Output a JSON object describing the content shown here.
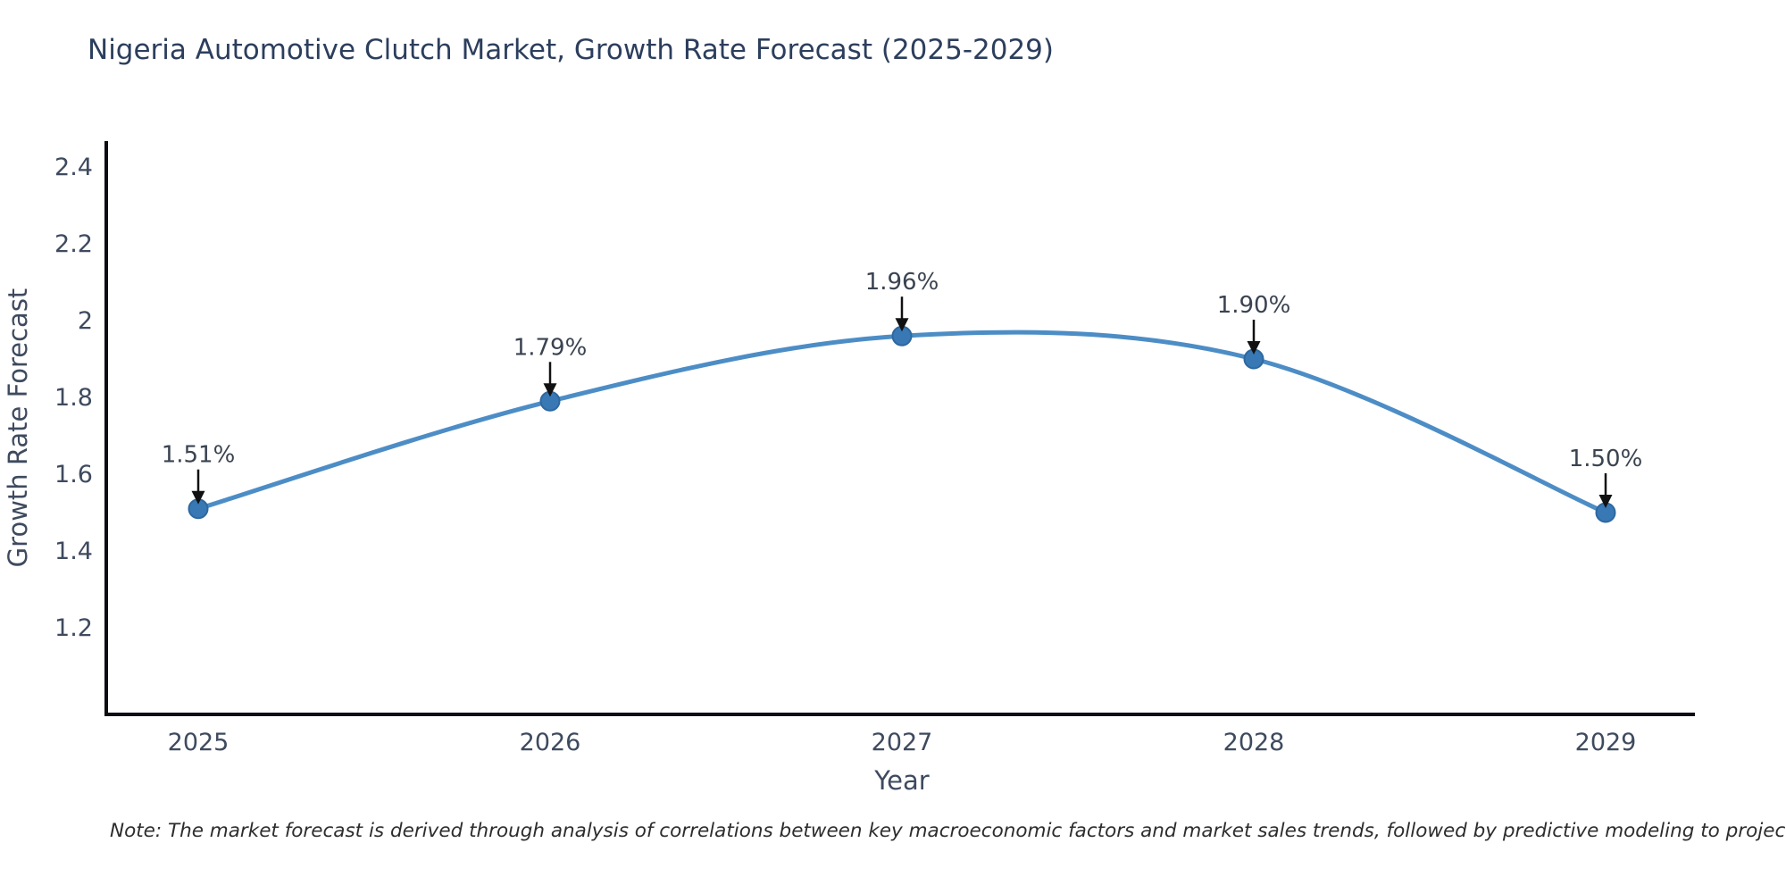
{
  "chart_data": {
    "type": "line",
    "title": "Nigeria Automotive Clutch Market, Growth Rate Forecast (2025-2029)",
    "xlabel": "Year",
    "ylabel": "Growth Rate Forecast",
    "categories": [
      "2025",
      "2026",
      "2027",
      "2028",
      "2029"
    ],
    "series": [
      {
        "name": "Growth Rate Forecast",
        "values": [
          1.51,
          1.79,
          1.96,
          1.9,
          1.5
        ],
        "point_labels": [
          "1.51%",
          "1.79%",
          "1.96%",
          "1.90%",
          "1.50%"
        ]
      }
    ],
    "ytick_labels": [
      "2.4",
      "2.2",
      "2",
      "1.8",
      "1.6",
      "1.4",
      "1.2"
    ],
    "ytick_values": [
      2.4,
      2.2,
      2.0,
      1.8,
      1.6,
      1.4,
      1.2
    ],
    "ylim": [
      0.97,
      2.46
    ],
    "grid": false,
    "legend": "none",
    "marker_style": "circle",
    "annotation_arrow": "down",
    "colors": {
      "line": "#4d8dc6",
      "marker": "#3878b5",
      "marker_edge": "#2e689f",
      "axis": "#0d0d12",
      "tick_label": "#3e4a5e",
      "axis_title": "#3e4a5e",
      "title": "#2c3e5d",
      "annotation": "#3a4350",
      "arrow": "#111111"
    }
  },
  "note": "Note: The market forecast is derived through analysis of correlations between key macroeconomic factors and market sales trends, followed by predictive modeling to project future sales"
}
